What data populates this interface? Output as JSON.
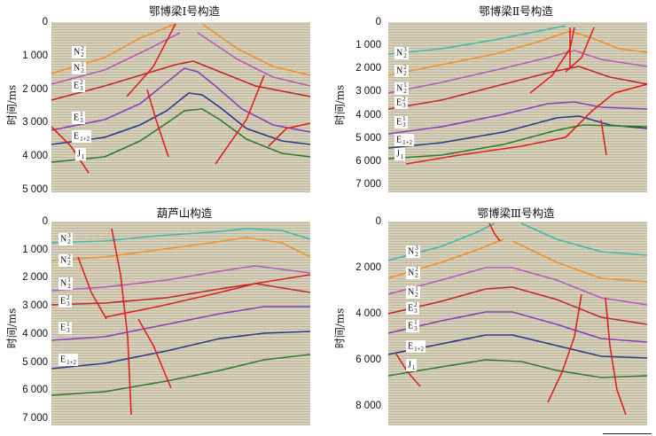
{
  "panels": [
    {
      "title": "鄂博梁Ⅰ号构造",
      "ylabel": "时间/ms",
      "ticks": [
        "0",
        "1 000",
        "2 000",
        "3 000",
        "4 000",
        "5 000"
      ],
      "horizons": [
        {
          "sym": "N",
          "sub": "2",
          "sup": "2"
        },
        {
          "sym": "N",
          "sub": "2",
          "sup": "1"
        },
        {
          "sym": "E",
          "sub": "3",
          "sup": "2"
        },
        {
          "sym": "E",
          "sub": "3",
          "sup": "1"
        },
        {
          "sym": "E",
          "sub": "1+2",
          "sup": ""
        },
        {
          "sym": "J",
          "sub": "1",
          "sup": ""
        }
      ]
    },
    {
      "title": "鄂博梁Ⅱ号构造",
      "ylabel": "时间/ms",
      "ticks": [
        "0",
        "1 000",
        "2 000",
        "3 000",
        "4 000",
        "5 000",
        "6 000",
        "7 000"
      ],
      "horizons": [
        {
          "sym": "N",
          "sub": "2",
          "sup": "3"
        },
        {
          "sym": "N",
          "sub": "2",
          "sup": "2"
        },
        {
          "sym": "N",
          "sub": "2",
          "sup": "1"
        },
        {
          "sym": "E",
          "sub": "3",
          "sup": "2"
        },
        {
          "sym": "E",
          "sub": "3",
          "sup": "1"
        },
        {
          "sym": "E",
          "sub": "1+2",
          "sup": ""
        },
        {
          "sym": "J",
          "sub": "1",
          "sup": ""
        }
      ]
    },
    {
      "title": "葫芦山构造",
      "ylabel": "时间/ms",
      "ticks": [
        "0",
        "1 000",
        "2 000",
        "3 000",
        "4 000",
        "5 000",
        "6 000",
        "7 000"
      ],
      "horizons": [
        {
          "sym": "N",
          "sub": "2",
          "sup": "3"
        },
        {
          "sym": "N",
          "sub": "2",
          "sup": "2"
        },
        {
          "sym": "N",
          "sub": "2",
          "sup": "1"
        },
        {
          "sym": "E",
          "sub": "3",
          "sup": "2"
        },
        {
          "sym": "E",
          "sub": "3",
          "sup": "1"
        },
        {
          "sym": "E",
          "sub": "1+2",
          "sup": ""
        }
      ]
    },
    {
      "title": "鄂博梁Ⅲ号构造",
      "ylabel": "时间/ms",
      "ticks": [
        "0",
        "2 000",
        "4 000",
        "6 000",
        "8 000"
      ],
      "horizons": [
        {
          "sym": "N",
          "sub": "2",
          "sup": "3"
        },
        {
          "sym": "N",
          "sub": "2",
          "sup": "2"
        },
        {
          "sym": "N",
          "sub": "2",
          "sup": "1"
        },
        {
          "sym": "E",
          "sub": "3",
          "sup": "2"
        },
        {
          "sym": "E",
          "sub": "3",
          "sup": "1"
        },
        {
          "sym": "E",
          "sub": "1+2",
          "sup": ""
        },
        {
          "sym": "J",
          "sub": "1",
          "sup": ""
        }
      ]
    }
  ],
  "colors": {
    "N2_3": "#3fb8b0",
    "N2_2": "#f0902a",
    "N2_1": "#b85ab8",
    "E3_2": "#c02828",
    "E3_1": "#8a3fb8",
    "E1_2": "#2a3a8a",
    "J1": "#2e7a2e",
    "fault": "#e02020",
    "background": "#d9d3bd"
  }
}
